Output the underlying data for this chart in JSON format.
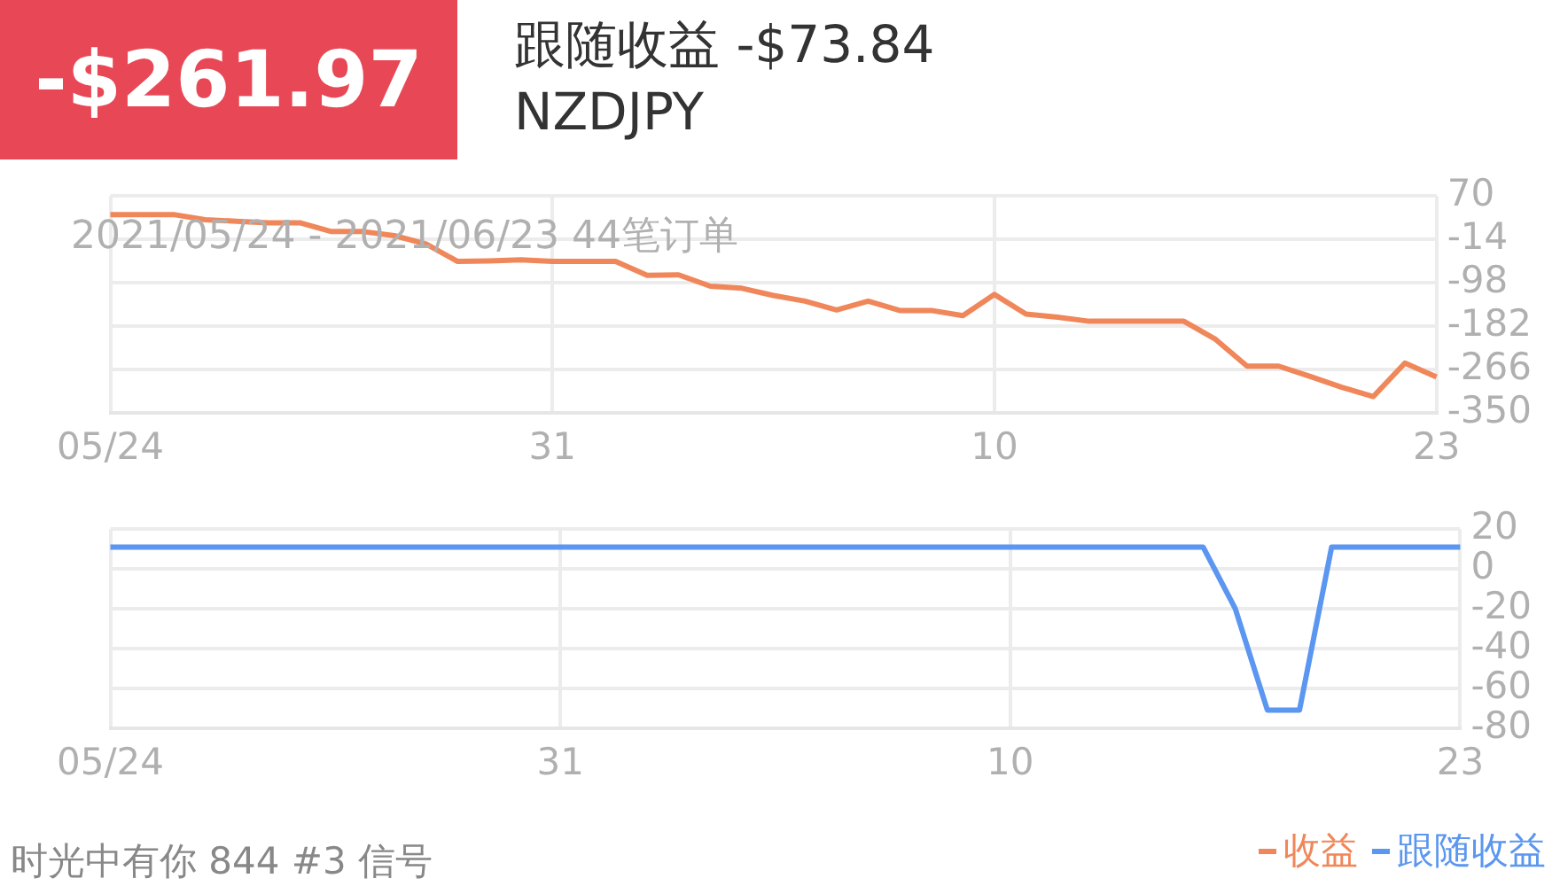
{
  "chart_data": [
    {
      "type": "line",
      "annotations": [
        "-$261.97",
        "跟随收益 -$73.84",
        "NZDJPY",
        "2021/05/24 - 2021/06/23 44笔订单"
      ],
      "categories": [
        "05/24",
        null,
        null,
        null,
        null,
        null,
        null,
        null,
        null,
        null,
        null,
        null,
        null,
        null,
        "31",
        null,
        null,
        null,
        null,
        null,
        null,
        null,
        null,
        null,
        null,
        null,
        null,
        null,
        "10",
        null,
        null,
        null,
        null,
        null,
        null,
        null,
        null,
        null,
        null,
        null,
        null,
        null,
        "23"
      ],
      "series": [
        {
          "name": "收益",
          "color": "#f0875a",
          "values": [
            34,
            34,
            34,
            24,
            21,
            18,
            18,
            1,
            1,
            -7,
            -23,
            -57,
            -56,
            -54,
            -57,
            -57,
            -57,
            -84,
            -83,
            -105,
            -109,
            -123,
            -134,
            -151,
            -134,
            -152,
            -152,
            -162,
            -121,
            -159,
            -165,
            -173,
            -173,
            -173,
            -173,
            -208,
            -260,
            -260,
            -280,
            -301,
            -319,
            -254,
            -281
          ]
        }
      ],
      "ylim": [
        -350,
        70
      ],
      "yticks": [
        70,
        -14,
        -98,
        -182,
        -266,
        -350
      ],
      "grid": true,
      "legend": "bottom right",
      "marker": "none",
      "line_style": "solid"
    },
    {
      "type": "line",
      "annotations": [
        "时光中有你 844 #3 信号"
      ],
      "categories": [
        "05/24",
        null,
        null,
        null,
        null,
        null,
        null,
        null,
        null,
        null,
        null,
        null,
        null,
        null,
        "31",
        null,
        null,
        null,
        null,
        null,
        null,
        null,
        null,
        null,
        null,
        null,
        null,
        null,
        "10",
        null,
        null,
        null,
        null,
        null,
        null,
        null,
        null,
        null,
        null,
        null,
        null,
        null,
        "23"
      ],
      "series": [
        {
          "name": "跟随收益",
          "color": "#5b96f0",
          "values": [
            11,
            11,
            11,
            11,
            11,
            11,
            11,
            11,
            11,
            11,
            11,
            11,
            11,
            11,
            11,
            11,
            11,
            11,
            11,
            11,
            11,
            11,
            11,
            11,
            11,
            11,
            11,
            11,
            11,
            11,
            11,
            11,
            11,
            11,
            11,
            -20,
            -71,
            -71,
            11,
            11,
            11,
            11,
            11
          ]
        }
      ],
      "ylim": [
        -80,
        20
      ],
      "yticks": [
        20,
        0,
        -20,
        -40,
        -60,
        -80
      ],
      "grid": true,
      "legend": "bottom right",
      "marker": "none",
      "line_style": "solid"
    }
  ]
}
